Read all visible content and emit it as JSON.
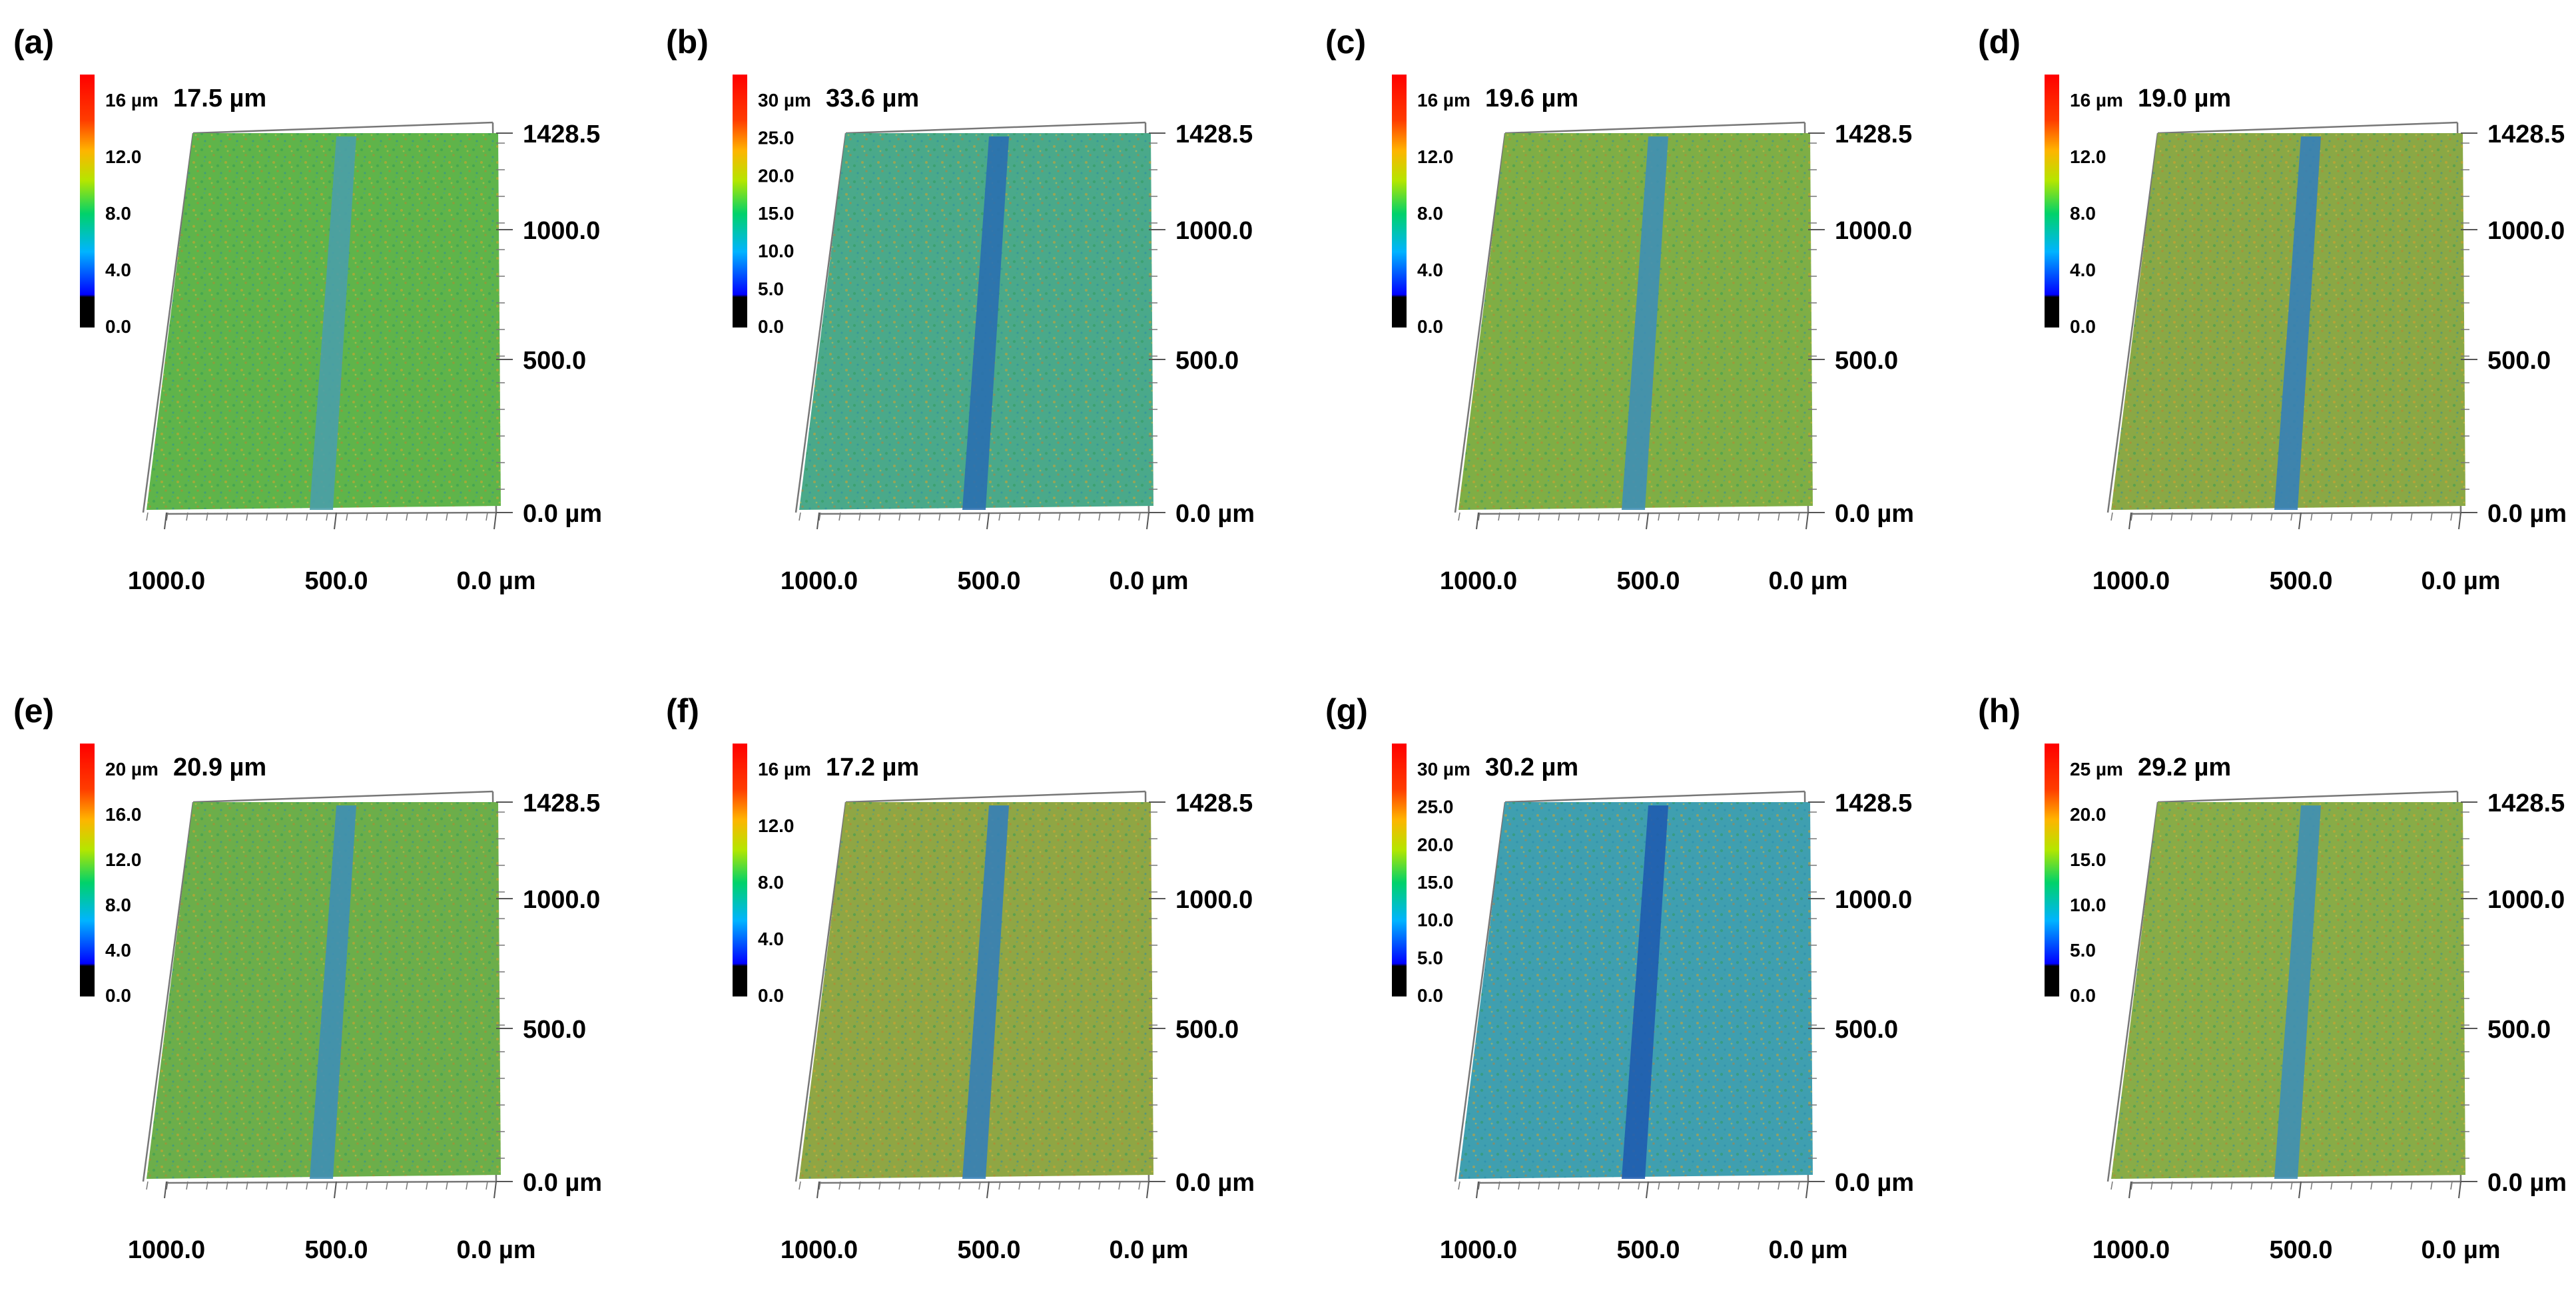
{
  "figure": {
    "panels": [
      {
        "label": "(a)",
        "max_height": "17.5 µm",
        "colorbar_ticks": [
          "16 µm",
          "12.0",
          "8.0",
          "4.0",
          "0.0"
        ],
        "y_ticks": [
          "1428.5",
          "1000.0",
          "500.0",
          "0.0 µm"
        ],
        "x_ticks": [
          "1000.0",
          "500.0",
          "0.0 µm"
        ],
        "surface_color": "#5fb44a",
        "groove_color": "#4a9ea8"
      },
      {
        "label": "(b)",
        "max_height": "33.6 µm",
        "colorbar_ticks": [
          "30 µm",
          "25.0",
          "20.0",
          "15.0",
          "10.0",
          "5.0",
          "0.0"
        ],
        "y_ticks": [
          "1428.5",
          "1000.0",
          "500.0",
          "0.0 µm"
        ],
        "x_ticks": [
          "1000.0",
          "500.0",
          "0.0 µm"
        ],
        "surface_color": "#4aa98a",
        "groove_color": "#2a6fb0"
      },
      {
        "label": "(c)",
        "max_height": "19.6 µm",
        "colorbar_ticks": [
          "16 µm",
          "12.0",
          "8.0",
          "4.0",
          "0.0"
        ],
        "y_ticks": [
          "1428.5",
          "1000.0",
          "500.0",
          "0.0 µm"
        ],
        "x_ticks": [
          "1000.0",
          "500.0",
          "0.0 µm"
        ],
        "surface_color": "#7fae45",
        "groove_color": "#3f8fb5"
      },
      {
        "label": "(d)",
        "max_height": "19.0 µm",
        "colorbar_ticks": [
          "16 µm",
          "12.0",
          "8.0",
          "4.0",
          "0.0"
        ],
        "y_ticks": [
          "1428.5",
          "1000.0",
          "500.0",
          "0.0 µm"
        ],
        "x_ticks": [
          "1000.0",
          "500.0",
          "0.0 µm"
        ],
        "surface_color": "#8aa845",
        "groove_color": "#3580b8"
      },
      {
        "label": "(e)",
        "max_height": "20.9 µm",
        "colorbar_ticks": [
          "20 µm",
          "16.0",
          "12.0",
          "8.0",
          "4.0",
          "0.0"
        ],
        "y_ticks": [
          "1428.5",
          "1000.0",
          "500.0",
          "0.0 µm"
        ],
        "x_ticks": [
          "1000.0",
          "500.0",
          "0.0 µm"
        ],
        "surface_color": "#6cae4a",
        "groove_color": "#3f8fb5"
      },
      {
        "label": "(f)",
        "max_height": "17.2 µm",
        "colorbar_ticks": [
          "16 µm",
          "12.0",
          "8.0",
          "4.0",
          "0.0"
        ],
        "y_ticks": [
          "1428.5",
          "1000.0",
          "500.0",
          "0.0 µm"
        ],
        "x_ticks": [
          "1000.0",
          "500.0",
          "0.0 µm"
        ],
        "surface_color": "#8fa644",
        "groove_color": "#3580b8"
      },
      {
        "label": "(g)",
        "max_height": "30.2 µm",
        "colorbar_ticks": [
          "30 µm",
          "25.0",
          "20.0",
          "15.0",
          "10.0",
          "5.0",
          "0.0"
        ],
        "y_ticks": [
          "1428.5",
          "1000.0",
          "500.0",
          "0.0 µm"
        ],
        "x_ticks": [
          "1000.0",
          "500.0",
          "0.0 µm"
        ],
        "surface_color": "#3f9fb0",
        "groove_color": "#1f5cb0"
      },
      {
        "label": "(h)",
        "max_height": "29.2 µm",
        "colorbar_ticks": [
          "25 µm",
          "20.0",
          "15.0",
          "10.0",
          "5.0",
          "0.0"
        ],
        "y_ticks": [
          "1428.5",
          "1000.0",
          "500.0",
          "0.0 µm"
        ],
        "x_ticks": [
          "1000.0",
          "500.0",
          "0.0 µm"
        ],
        "surface_color": "#88ac47",
        "groove_color": "#3f8fb5"
      }
    ]
  }
}
